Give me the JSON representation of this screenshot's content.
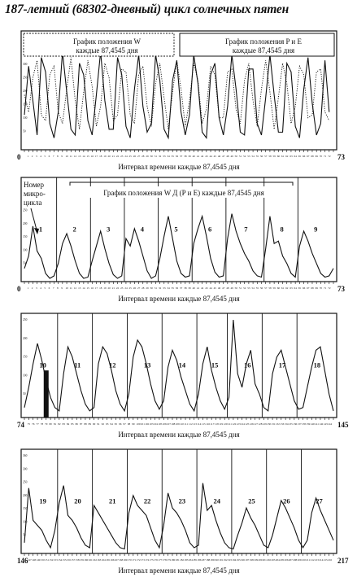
{
  "title": "187-летний (68302-дневный) цикл солнечных пятен",
  "chart_data": [
    {
      "type": "line",
      "panel": "top",
      "legend": [
        {
          "label_line1": "График положения W",
          "label_line2": "каждые 87,4545 дня",
          "style": "dotted"
        },
        {
          "label_line1": "График положения P и E",
          "label_line2": "каждые 87,4545 дня",
          "style": "solid"
        }
      ],
      "xlabel": "Интервал времени каждые 87,4545 дня",
      "x_start_label": "0",
      "x_end_label": "73",
      "xlim": [
        0,
        73
      ],
      "ylim": [
        0,
        380
      ],
      "y_ticks": [
        "360",
        "340",
        "300",
        "250",
        "200",
        "150",
        "100",
        "50"
      ],
      "series": [
        {
          "style": "solid",
          "values": [
            110,
            280,
            160,
            40,
            310,
            260,
            80,
            30,
            120,
            330,
            190,
            60,
            40,
            290,
            250,
            90,
            40,
            180,
            330,
            160,
            60,
            60,
            310,
            250,
            70,
            30,
            200,
            320,
            140,
            50,
            80,
            320,
            230,
            60,
            30,
            230,
            300,
            120,
            40,
            110,
            320,
            220,
            50,
            30,
            250,
            290,
            100,
            40,
            140,
            320,
            200,
            50,
            40,
            270,
            270,
            80,
            40,
            170,
            320,
            180,
            50,
            50,
            290,
            260,
            70,
            30,
            200,
            310,
            150,
            40,
            80,
            300,
            120
          ]
        },
        {
          "style": "dotted",
          "values": [
            180,
            120,
            240,
            300,
            110,
            90,
            250,
            280,
            120,
            80,
            200,
            310,
            160,
            60,
            190,
            300,
            210,
            70,
            140,
            290,
            240,
            90,
            110,
            270,
            260,
            110,
            80,
            250,
            280,
            140,
            70,
            220,
            290,
            170,
            60,
            190,
            300,
            200,
            70,
            160,
            290,
            230,
            80,
            130,
            280,
            250,
            100,
            100,
            260,
            270,
            130,
            80,
            230,
            290,
            160,
            70,
            200,
            300,
            190,
            60,
            170,
            290,
            220,
            80,
            140,
            280,
            250,
            100,
            110,
            260,
            270,
            120,
            90
          ]
        }
      ]
    },
    {
      "type": "line",
      "panel": "cycles-1-9",
      "annotation_label": "Номер микро-цикла",
      "bracket_label": "График положения W Д (P и E) каждые 87,4545 дня",
      "xlabel": "Интервал времени каждые 87,4545 дня",
      "x_start_label": "0",
      "x_end_label": "73",
      "xlim": [
        0,
        73
      ],
      "ylim": [
        0,
        380
      ],
      "y_ticks": [
        "360",
        "300",
        "250",
        "200",
        "150",
        "100",
        "50"
      ],
      "cycle_labels": [
        "1",
        "2",
        "3",
        "4",
        "5",
        "6",
        "7",
        "8",
        "9"
      ],
      "cycle_starts": [
        0,
        8,
        16,
        24,
        32,
        40,
        48,
        57,
        65
      ],
      "values": [
        40,
        90,
        210,
        110,
        80,
        20,
        0,
        10,
        60,
        140,
        180,
        130,
        70,
        20,
        0,
        5,
        70,
        130,
        190,
        120,
        60,
        15,
        0,
        10,
        160,
        130,
        200,
        150,
        90,
        30,
        0,
        10,
        80,
        170,
        250,
        160,
        70,
        20,
        5,
        10,
        140,
        200,
        250,
        170,
        80,
        25,
        5,
        10,
        160,
        260,
        190,
        140,
        100,
        70,
        30,
        10,
        5,
        120,
        250,
        140,
        150,
        90,
        60,
        20,
        5,
        130,
        190,
        150,
        100,
        60,
        20,
        5,
        10,
        40
      ]
    },
    {
      "type": "line",
      "panel": "cycles-10-18",
      "xlabel": "Интервал времени каждые 87,4545 дня",
      "x_start_label": "74",
      "x_end_label": "145",
      "xlim": [
        74,
        145
      ],
      "ylim": [
        0,
        280
      ],
      "y_ticks": [
        "250",
        "200",
        "150",
        "100",
        "50"
      ],
      "cycle_labels": [
        "10",
        "11",
        "12",
        "13",
        "14",
        "15",
        "16",
        "17",
        "18"
      ],
      "cycle_starts": [
        74,
        82,
        90,
        98,
        106,
        114,
        121,
        129,
        137
      ],
      "highlight_bar": {
        "x": 79,
        "value": 130
      },
      "values": [
        20,
        80,
        150,
        210,
        160,
        100,
        50,
        20,
        10,
        120,
        200,
        170,
        120,
        70,
        30,
        10,
        20,
        150,
        200,
        180,
        130,
        70,
        30,
        10,
        60,
        170,
        220,
        200,
        150,
        90,
        40,
        15,
        40,
        140,
        190,
        160,
        110,
        70,
        30,
        10,
        60,
        150,
        200,
        130,
        80,
        40,
        15,
        50,
        280,
        120,
        80,
        150,
        190,
        90,
        60,
        20,
        10,
        120,
        170,
        190,
        140,
        90,
        40,
        15,
        20,
        80,
        140,
        190,
        200,
        130,
        60,
        10
      ]
    },
    {
      "type": "line",
      "panel": "cycles-19-27",
      "xlabel": "Интервал времени каждые 87,4545 дня",
      "x_start_label": "146",
      "x_end_label": "217",
      "xlim": [
        146,
        217
      ],
      "ylim": [
        0,
        380
      ],
      "y_ticks": [
        "360",
        "300",
        "250",
        "200",
        "150",
        "100",
        "50"
      ],
      "cycle_labels": [
        "19",
        "20",
        "21",
        "22",
        "23",
        "24",
        "25",
        "26",
        "27"
      ],
      "cycle_starts": [
        146,
        154,
        162,
        170,
        178,
        186,
        194,
        202,
        210
      ],
      "values": [
        30,
        250,
        120,
        100,
        80,
        40,
        10,
        80,
        190,
        260,
        140,
        120,
        90,
        50,
        20,
        10,
        180,
        150,
        120,
        90,
        60,
        30,
        10,
        5,
        150,
        220,
        180,
        160,
        140,
        90,
        40,
        10,
        100,
        230,
        170,
        150,
        120,
        80,
        30,
        10,
        20,
        270,
        160,
        180,
        120,
        70,
        30,
        10,
        5,
        60,
        110,
        170,
        130,
        100,
        60,
        20,
        10,
        60,
        130,
        200,
        170,
        130,
        90,
        40,
        10,
        40,
        150,
        210,
        160,
        120,
        80,
        40
      ]
    }
  ]
}
